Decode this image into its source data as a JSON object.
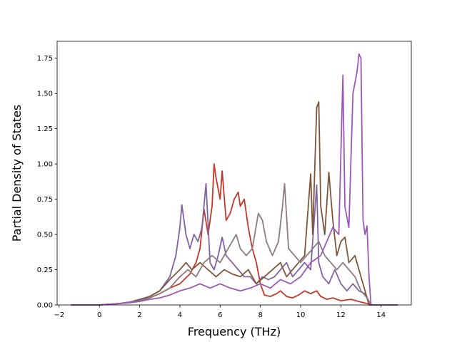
{
  "chart_data": {
    "type": "line",
    "title": "",
    "xlabel": "Frequency (THz)",
    "ylabel": "Partial Density of States",
    "xlim": [
      -2.1,
      15.5
    ],
    "ylim": [
      0,
      1.87
    ],
    "xticks": [
      -2,
      0,
      2,
      4,
      6,
      8,
      10,
      12,
      14
    ],
    "xtick_labels": [
      "−2",
      "0",
      "2",
      "4",
      "6",
      "8",
      "10",
      "12",
      "14"
    ],
    "yticks": [
      0,
      0.25,
      0.5,
      0.75,
      1.0,
      1.25,
      1.5,
      1.75
    ],
    "ytick_labels": [
      "0.00",
      "0.25",
      "0.50",
      "0.75",
      "1.00",
      "1.25",
      "1.50",
      "1.75"
    ],
    "grid": false,
    "series": [
      {
        "color": "#c0392b",
        "points": [
          [
            -1.4,
            0
          ],
          [
            0,
            0
          ],
          [
            0.5,
            0.005
          ],
          [
            1,
            0.01
          ],
          [
            1.5,
            0.02
          ],
          [
            2,
            0.035
          ],
          [
            2.5,
            0.05
          ],
          [
            3,
            0.08
          ],
          [
            3.5,
            0.12
          ],
          [
            4,
            0.15
          ],
          [
            4.5,
            0.22
          ],
          [
            4.8,
            0.3
          ],
          [
            5.0,
            0.4
          ],
          [
            5.2,
            0.68
          ],
          [
            5.4,
            0.5
          ],
          [
            5.6,
            0.7
          ],
          [
            5.7,
            1.0
          ],
          [
            5.8,
            0.9
          ],
          [
            6.0,
            0.75
          ],
          [
            6.1,
            0.95
          ],
          [
            6.3,
            0.6
          ],
          [
            6.5,
            0.65
          ],
          [
            6.7,
            0.75
          ],
          [
            6.9,
            0.8
          ],
          [
            7.0,
            0.7
          ],
          [
            7.2,
            0.75
          ],
          [
            7.4,
            0.55
          ],
          [
            7.6,
            0.4
          ],
          [
            7.8,
            0.3
          ],
          [
            8.0,
            0.15
          ],
          [
            8.2,
            0.07
          ],
          [
            8.5,
            0.06
          ],
          [
            8.8,
            0.08
          ],
          [
            9.0,
            0.1
          ],
          [
            9.3,
            0.06
          ],
          [
            9.6,
            0.05
          ],
          [
            9.9,
            0.07
          ],
          [
            10.2,
            0.1
          ],
          [
            10.5,
            0.08
          ],
          [
            10.8,
            0.1
          ],
          [
            11.0,
            0.06
          ],
          [
            11.3,
            0.04
          ],
          [
            11.6,
            0.05
          ],
          [
            12.0,
            0.03
          ],
          [
            12.5,
            0.04
          ],
          [
            13.0,
            0.02
          ],
          [
            13.3,
            0.01
          ],
          [
            13.6,
            0
          ],
          [
            14.8,
            0
          ]
        ]
      },
      {
        "color": "#8064a2",
        "points": [
          [
            -1.4,
            0
          ],
          [
            0,
            0
          ],
          [
            0.5,
            0.005
          ],
          [
            1,
            0.01
          ],
          [
            1.5,
            0.02
          ],
          [
            2,
            0.04
          ],
          [
            2.5,
            0.06
          ],
          [
            3,
            0.1
          ],
          [
            3.5,
            0.2
          ],
          [
            3.8,
            0.35
          ],
          [
            4.0,
            0.55
          ],
          [
            4.1,
            0.71
          ],
          [
            4.3,
            0.5
          ],
          [
            4.5,
            0.4
          ],
          [
            4.7,
            0.5
          ],
          [
            4.9,
            0.45
          ],
          [
            5.1,
            0.55
          ],
          [
            5.3,
            0.86
          ],
          [
            5.5,
            0.3
          ],
          [
            5.7,
            0.25
          ],
          [
            5.9,
            0.35
          ],
          [
            6.1,
            0.48
          ],
          [
            6.3,
            0.35
          ],
          [
            6.6,
            0.3
          ],
          [
            6.9,
            0.25
          ],
          [
            7.2,
            0.2
          ],
          [
            7.5,
            0.2
          ],
          [
            7.8,
            0.15
          ],
          [
            8.1,
            0.2
          ],
          [
            8.4,
            0.18
          ],
          [
            8.7,
            0.2
          ],
          [
            9.0,
            0.25
          ],
          [
            9.3,
            0.3
          ],
          [
            9.6,
            0.2
          ],
          [
            9.9,
            0.25
          ],
          [
            10.2,
            0.3
          ],
          [
            10.5,
            0.25
          ],
          [
            10.8,
            0.85
          ],
          [
            10.9,
            0.3
          ],
          [
            11.1,
            0.2
          ],
          [
            11.4,
            0.15
          ],
          [
            11.7,
            0.25
          ],
          [
            12.0,
            0.15
          ],
          [
            12.3,
            0.1
          ],
          [
            12.6,
            0.15
          ],
          [
            12.9,
            0.1
          ],
          [
            13.2,
            0.08
          ],
          [
            13.5,
            0
          ],
          [
            14.8,
            0
          ]
        ]
      },
      {
        "color": "#7f5539",
        "points": [
          [
            -1.4,
            0
          ],
          [
            0,
            0
          ],
          [
            0.5,
            0.005
          ],
          [
            1,
            0.01
          ],
          [
            1.5,
            0.02
          ],
          [
            2,
            0.035
          ],
          [
            2.5,
            0.06
          ],
          [
            3,
            0.1
          ],
          [
            3.5,
            0.18
          ],
          [
            4.0,
            0.25
          ],
          [
            4.3,
            0.3
          ],
          [
            4.6,
            0.25
          ],
          [
            5.0,
            0.3
          ],
          [
            5.4,
            0.25
          ],
          [
            5.8,
            0.2
          ],
          [
            6.2,
            0.25
          ],
          [
            6.6,
            0.22
          ],
          [
            7.0,
            0.2
          ],
          [
            7.4,
            0.25
          ],
          [
            7.8,
            0.15
          ],
          [
            8.2,
            0.2
          ],
          [
            8.6,
            0.25
          ],
          [
            9.0,
            0.3
          ],
          [
            9.3,
            0.2
          ],
          [
            9.6,
            0.25
          ],
          [
            9.9,
            0.3
          ],
          [
            10.2,
            0.35
          ],
          [
            10.5,
            0.93
          ],
          [
            10.6,
            0.5
          ],
          [
            10.8,
            1.4
          ],
          [
            10.9,
            1.44
          ],
          [
            11.0,
            0.7
          ],
          [
            11.2,
            0.5
          ],
          [
            11.4,
            0.94
          ],
          [
            11.6,
            0.6
          ],
          [
            11.8,
            0.35
          ],
          [
            12.0,
            0.45
          ],
          [
            12.2,
            0.48
          ],
          [
            12.4,
            0.3
          ],
          [
            12.7,
            0.35
          ],
          [
            13.0,
            0.2
          ],
          [
            13.2,
            0.1
          ],
          [
            13.4,
            0
          ],
          [
            14.8,
            0
          ]
        ]
      },
      {
        "color": "#8c7b80",
        "points": [
          [
            -1.4,
            0
          ],
          [
            0,
            0
          ],
          [
            0.5,
            0.005
          ],
          [
            1,
            0.01
          ],
          [
            1.5,
            0.02
          ],
          [
            2,
            0.03
          ],
          [
            2.5,
            0.05
          ],
          [
            3,
            0.08
          ],
          [
            3.5,
            0.12
          ],
          [
            4.0,
            0.2
          ],
          [
            4.4,
            0.25
          ],
          [
            4.8,
            0.2
          ],
          [
            5.2,
            0.3
          ],
          [
            5.6,
            0.35
          ],
          [
            6.0,
            0.3
          ],
          [
            6.4,
            0.4
          ],
          [
            6.8,
            0.5
          ],
          [
            7.0,
            0.4
          ],
          [
            7.3,
            0.35
          ],
          [
            7.6,
            0.4
          ],
          [
            7.9,
            0.65
          ],
          [
            8.1,
            0.6
          ],
          [
            8.3,
            0.45
          ],
          [
            8.6,
            0.35
          ],
          [
            8.9,
            0.45
          ],
          [
            9.1,
            0.7
          ],
          [
            9.2,
            0.86
          ],
          [
            9.4,
            0.4
          ],
          [
            9.7,
            0.35
          ],
          [
            10.0,
            0.3
          ],
          [
            10.3,
            0.35
          ],
          [
            10.6,
            0.4
          ],
          [
            10.9,
            0.45
          ],
          [
            11.2,
            0.35
          ],
          [
            11.5,
            0.3
          ],
          [
            11.8,
            0.25
          ],
          [
            12.1,
            0.3
          ],
          [
            12.4,
            0.25
          ],
          [
            12.7,
            0.2
          ],
          [
            13.0,
            0.1
          ],
          [
            13.3,
            0.05
          ],
          [
            13.5,
            0
          ],
          [
            14.8,
            0
          ]
        ]
      },
      {
        "color": "#9b59b6",
        "points": [
          [
            -1.4,
            0
          ],
          [
            0,
            0
          ],
          [
            0.5,
            0.005
          ],
          [
            1,
            0.01
          ],
          [
            1.5,
            0.015
          ],
          [
            2,
            0.025
          ],
          [
            2.5,
            0.04
          ],
          [
            3,
            0.05
          ],
          [
            3.5,
            0.07
          ],
          [
            4.0,
            0.1
          ],
          [
            4.5,
            0.12
          ],
          [
            5.0,
            0.15
          ],
          [
            5.5,
            0.12
          ],
          [
            6.0,
            0.15
          ],
          [
            6.5,
            0.12
          ],
          [
            7.0,
            0.1
          ],
          [
            7.5,
            0.12
          ],
          [
            8.0,
            0.15
          ],
          [
            8.5,
            0.12
          ],
          [
            9.0,
            0.18
          ],
          [
            9.5,
            0.15
          ],
          [
            10.0,
            0.2
          ],
          [
            10.5,
            0.3
          ],
          [
            11.0,
            0.35
          ],
          [
            11.3,
            0.45
          ],
          [
            11.6,
            0.55
          ],
          [
            11.9,
            0.5
          ],
          [
            12.1,
            1.63
          ],
          [
            12.2,
            0.7
          ],
          [
            12.4,
            0.55
          ],
          [
            12.6,
            1.5
          ],
          [
            12.8,
            1.65
          ],
          [
            12.9,
            1.78
          ],
          [
            13.0,
            1.75
          ],
          [
            13.1,
            0.6
          ],
          [
            13.2,
            0.5
          ],
          [
            13.3,
            0.56
          ],
          [
            13.4,
            0.2
          ],
          [
            13.5,
            0
          ],
          [
            14.8,
            0
          ]
        ]
      }
    ]
  }
}
